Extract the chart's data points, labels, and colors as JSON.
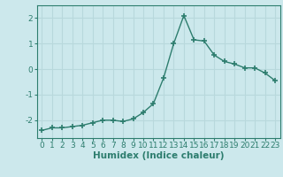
{
  "xlabel": "Humidex (Indice chaleur)",
  "x": [
    0,
    1,
    2,
    3,
    4,
    5,
    6,
    7,
    8,
    9,
    10,
    11,
    12,
    13,
    14,
    15,
    16,
    17,
    18,
    19,
    20,
    21,
    22,
    23
  ],
  "y": [
    -2.4,
    -2.3,
    -2.3,
    -2.25,
    -2.2,
    -2.1,
    -2.0,
    -2.0,
    -2.05,
    -1.95,
    -1.7,
    -1.35,
    -0.35,
    1.0,
    2.1,
    1.15,
    1.1,
    0.55,
    0.3,
    0.2,
    0.05,
    0.05,
    -0.15,
    -0.45
  ],
  "line_color": "#2d7d6e",
  "bg_color": "#cce8ec",
  "grid_color": "#b8d8dc",
  "axis_color": "#2d7d6e",
  "ylim": [
    -2.7,
    2.5
  ],
  "xlim": [
    -0.5,
    23.5
  ],
  "yticks": [
    -2,
    -1,
    0,
    1,
    2
  ],
  "xticks": [
    0,
    1,
    2,
    3,
    4,
    5,
    6,
    7,
    8,
    9,
    10,
    11,
    12,
    13,
    14,
    15,
    16,
    17,
    18,
    19,
    20,
    21,
    22,
    23
  ],
  "marker": "+",
  "marker_size": 4,
  "line_width": 1.0,
  "tick_fontsize": 6.5,
  "label_fontsize": 7.5,
  "label_fontweight": "bold"
}
